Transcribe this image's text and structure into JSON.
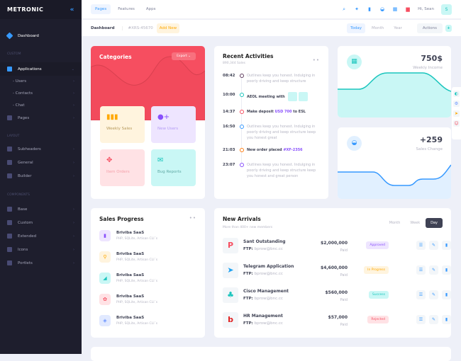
{
  "brand": "METRONIC",
  "sidebar": {
    "dashboard": "Dashboard",
    "sections": [
      "CUSTOM",
      "LAYOUT",
      "COMPONENTS"
    ],
    "items": [
      {
        "label": "Applications",
        "y": 88
      },
      {
        "label": "- Users"
      },
      {
        "label": "- Contacts"
      },
      {
        "label": "- Chat"
      },
      {
        "label": "Pages"
      },
      {
        "label": "Subheaders"
      },
      {
        "label": "General"
      },
      {
        "label": "Builder"
      },
      {
        "label": "Base"
      },
      {
        "label": "Custom"
      },
      {
        "label": "Extended"
      },
      {
        "label": "Icons"
      },
      {
        "label": "Portlets"
      }
    ]
  },
  "topbar": {
    "tabs": [
      "Pages",
      "Features",
      "Apps"
    ],
    "greeting": "Hi, Sean",
    "avatar": "S"
  },
  "subheader": {
    "title": "Dashboard",
    "id": "#XRS-45670",
    "add": "Add New",
    "ranges": [
      "Today",
      "Month",
      "Year"
    ],
    "actions": "Actions"
  },
  "categories": {
    "title": "Categories",
    "export": "Export",
    "tiles": [
      "Weekly Sales",
      "New Users",
      "Item Orders",
      "Bug Reports"
    ]
  },
  "activities": {
    "title": "Recent Activities",
    "subtitle": "890,344 Sales",
    "items": [
      {
        "time": "08:42",
        "text": "Outlines keep you honest. Indulging in poorly driving and keep structure",
        "color": "#5f3c5f",
        "bold": false
      },
      {
        "time": "10:00",
        "text": "AEOL meeting with",
        "color": "#1bc5bd",
        "bold": true
      },
      {
        "time": "14:37",
        "text": "Make deposit ",
        "hl": "USD 700",
        "tail": " to ESL",
        "color": "#f64e60",
        "bold": true
      },
      {
        "time": "16:50",
        "text": "Outlines keep you honest. Indulging in poorly driving and keep structure keep you honest great",
        "color": "#3699ff",
        "bold": false
      },
      {
        "time": "21:03",
        "text": "New order placed ",
        "hl": "#XF-2356",
        "color": "#fd7e14",
        "bold": true
      },
      {
        "time": "23:07",
        "text": "Outlines keep you honest. Indulging in poorly driving and keep structure keep you honest and great person",
        "color": "#8950fc",
        "bold": false
      }
    ]
  },
  "income": {
    "value": "750$",
    "label": "Weekly Income"
  },
  "change": {
    "value": "+259",
    "label": "Sales Change"
  },
  "sales_progress": {
    "title": "Sales Progress",
    "items": [
      {
        "name": "Briviba SaaS",
        "desc": "PHP, SQLite, Artisan CLI´s"
      },
      {
        "name": "Briviba SaaS",
        "desc": "PHP, SQLite, Artisan CLI´s"
      },
      {
        "name": "Briviba SaaS",
        "desc": "PHP, SQLite, Artisan CLI´s"
      },
      {
        "name": "Briviba SaaS",
        "desc": "PHP, SQLite, Artisan CLI´s"
      },
      {
        "name": "Briviba SaaS",
        "desc": "PHP, SQLite, Artisan CLI´s"
      }
    ]
  },
  "arrivals": {
    "title": "New Arrivals",
    "subtitle": "More than 400+ new members",
    "tabs": [
      "Month",
      "Week",
      "Day"
    ],
    "ftp_label": "FTP:",
    "rows": [
      {
        "name": "Sant Outstanding",
        "ftp": "bprow@bnc.cc",
        "amount": "$2,000,000",
        "paid": "Paid",
        "status": "Approved"
      },
      {
        "name": "Telegram Application",
        "ftp": "bprow@bnc.cc",
        "amount": "$4,600,000",
        "paid": "Paid",
        "status": "In Progress"
      },
      {
        "name": "Cisco Management",
        "ftp": "bprow@bnc.cc",
        "amount": "$560,000",
        "paid": "Paid",
        "status": "Success"
      },
      {
        "name": "HR Management",
        "ftp": "bprow@bnc.cc",
        "amount": "$57,000",
        "paid": "Paid",
        "status": "Rejected"
      }
    ]
  }
}
